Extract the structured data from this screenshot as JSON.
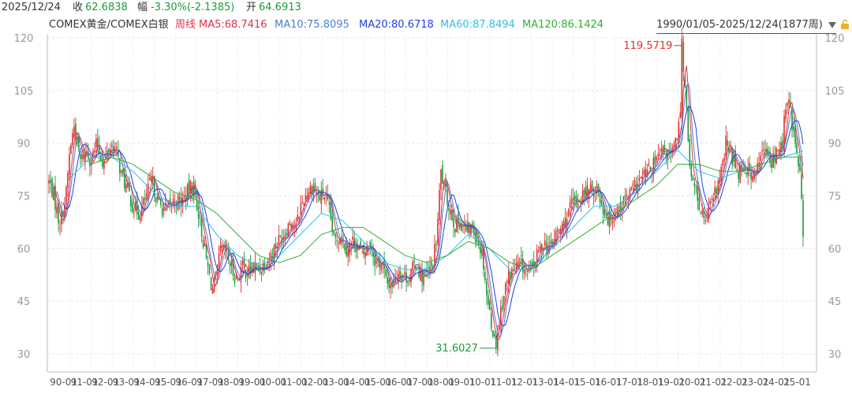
{
  "header": {
    "date": "2025/12/24",
    "close_label": "收",
    "close_value": "62.6838",
    "change_label": "幅",
    "change_value": "-3.30%(-2.1385)",
    "open_label": "开",
    "open_value": "64.6913"
  },
  "legend": {
    "symbol": "COMEX黄金/COMEX白银",
    "period": "周线",
    "ma5": "MA5:68.7416",
    "ma10": "MA10:75.8095",
    "ma20": "MA20:80.6718",
    "ma60": "MA60:87.8494",
    "ma120": "MA120:86.1424",
    "range": "1990/01/05-2025/12/24(1877周)",
    "dropdown_icon": "triangle-down-icon",
    "lock_icon": "lock-icon"
  },
  "colors": {
    "up": "#e03030",
    "down": "#1a9a3a",
    "ma5": "#e0304a",
    "ma10": "#4a7fd0",
    "ma20": "#2040e0",
    "ma60": "#30c0e0",
    "ma120": "#30b030"
  },
  "annotations": {
    "high_label": "119.5719",
    "low_label": "31.6027"
  },
  "chart_data": {
    "type": "candlestick",
    "title": "COMEX黄金/COMEX白银",
    "y_ticks": [
      "120",
      "105",
      "90",
      "75",
      "60",
      "45",
      "30"
    ],
    "ylim": [
      26,
      124
    ],
    "x_ticks": [
      "90-01",
      "91-01",
      "92-01",
      "93-01",
      "94-01",
      "95-01",
      "96-01",
      "97-01",
      "98-01",
      "99-01",
      "00-01",
      "01-01",
      "02-01",
      "03-01",
      "04-01",
      "05-01",
      "06-01",
      "07-01",
      "08-01",
      "09-01",
      "10-01",
      "11-01",
      "12-01",
      "13-01",
      "14-01",
      "15-01",
      "16-01",
      "17-01",
      "18-01",
      "19-01",
      "20-01",
      "21-01",
      "22-01",
      "23-01",
      "24-01",
      "25-01"
    ],
    "x_start_year": 1990,
    "x_end_year": 2025.98,
    "grid": true,
    "price_path": [
      [
        1990.0,
        79
      ],
      [
        1990.2,
        76
      ],
      [
        1990.5,
        67
      ],
      [
        1990.8,
        74
      ],
      [
        1991.0,
        88
      ],
      [
        1991.2,
        95
      ],
      [
        1991.5,
        85
      ],
      [
        1991.8,
        88
      ],
      [
        1992.0,
        85
      ],
      [
        1992.3,
        90
      ],
      [
        1992.6,
        84
      ],
      [
        1992.9,
        89
      ],
      [
        1993.2,
        88
      ],
      [
        1993.5,
        80
      ],
      [
        1993.8,
        76
      ],
      [
        1994.0,
        72
      ],
      [
        1994.3,
        70
      ],
      [
        1994.6,
        74
      ],
      [
        1994.9,
        80
      ],
      [
        1995.2,
        73
      ],
      [
        1995.5,
        71
      ],
      [
        1995.8,
        72
      ],
      [
        1996.0,
        74
      ],
      [
        1996.3,
        73
      ],
      [
        1996.6,
        76
      ],
      [
        1996.9,
        78
      ],
      [
        1997.2,
        68
      ],
      [
        1997.5,
        57
      ],
      [
        1997.8,
        48
      ],
      [
        1998.0,
        52
      ],
      [
        1998.2,
        60
      ],
      [
        1998.5,
        58
      ],
      [
        1998.8,
        53
      ],
      [
        1999.0,
        51
      ],
      [
        1999.2,
        55
      ],
      [
        1999.5,
        53
      ],
      [
        1999.8,
        55
      ],
      [
        2000.0,
        54
      ],
      [
        2000.3,
        56
      ],
      [
        2000.6,
        58
      ],
      [
        2000.9,
        62
      ],
      [
        2001.2,
        64
      ],
      [
        2001.5,
        68
      ],
      [
        2001.8,
        66
      ],
      [
        2002.0,
        72
      ],
      [
        2002.3,
        76
      ],
      [
        2002.6,
        78
      ],
      [
        2002.9,
        74
      ],
      [
        2003.1,
        76
      ],
      [
        2003.4,
        70
      ],
      [
        2003.6,
        62
      ],
      [
        2003.9,
        64
      ],
      [
        2004.2,
        60
      ],
      [
        2004.5,
        62
      ],
      [
        2004.8,
        60
      ],
      [
        2005.0,
        58
      ],
      [
        2005.3,
        62
      ],
      [
        2005.6,
        56
      ],
      [
        2005.9,
        56
      ],
      [
        2006.1,
        50
      ],
      [
        2006.4,
        50
      ],
      [
        2006.7,
        54
      ],
      [
        2006.9,
        52
      ],
      [
        2007.2,
        52
      ],
      [
        2007.5,
        56
      ],
      [
        2007.8,
        52
      ],
      [
        2008.0,
        52
      ],
      [
        2008.3,
        55
      ],
      [
        2008.5,
        63
      ],
      [
        2008.7,
        82
      ],
      [
        2008.9,
        76
      ],
      [
        2009.1,
        72
      ],
      [
        2009.4,
        66
      ],
      [
        2009.6,
        68
      ],
      [
        2009.9,
        65
      ],
      [
        2010.2,
        66
      ],
      [
        2010.5,
        62
      ],
      [
        2010.7,
        58
      ],
      [
        2010.9,
        46
      ],
      [
        2011.2,
        36
      ],
      [
        2011.3,
        32
      ],
      [
        2011.6,
        44
      ],
      [
        2011.9,
        52
      ],
      [
        2012.2,
        54
      ],
      [
        2012.5,
        56
      ],
      [
        2012.8,
        53
      ],
      [
        2013.0,
        54
      ],
      [
        2013.3,
        58
      ],
      [
        2013.6,
        62
      ],
      [
        2013.9,
        60
      ],
      [
        2014.2,
        64
      ],
      [
        2014.5,
        66
      ],
      [
        2014.8,
        70
      ],
      [
        2015.0,
        73
      ],
      [
        2015.3,
        74
      ],
      [
        2015.6,
        76
      ],
      [
        2015.9,
        76
      ],
      [
        2016.1,
        78
      ],
      [
        2016.4,
        72
      ],
      [
        2016.7,
        68
      ],
      [
        2016.9,
        70
      ],
      [
        2017.2,
        72
      ],
      [
        2017.5,
        74
      ],
      [
        2017.8,
        76
      ],
      [
        2018.0,
        78
      ],
      [
        2018.3,
        80
      ],
      [
        2018.6,
        82
      ],
      [
        2018.9,
        84
      ],
      [
        2019.1,
        86
      ],
      [
        2019.4,
        88
      ],
      [
        2019.7,
        86
      ],
      [
        2019.9,
        90
      ],
      [
        2020.1,
        96
      ],
      [
        2020.2,
        119.6
      ],
      [
        2020.3,
        108
      ],
      [
        2020.4,
        104
      ],
      [
        2020.6,
        80
      ],
      [
        2020.9,
        76
      ],
      [
        2021.1,
        70
      ],
      [
        2021.3,
        68
      ],
      [
        2021.6,
        72
      ],
      [
        2021.9,
        78
      ],
      [
        2022.1,
        82
      ],
      [
        2022.3,
        90
      ],
      [
        2022.6,
        86
      ],
      [
        2022.9,
        82
      ],
      [
        2023.1,
        84
      ],
      [
        2023.4,
        82
      ],
      [
        2023.7,
        80
      ],
      [
        2023.9,
        86
      ],
      [
        2024.2,
        88
      ],
      [
        2024.4,
        84
      ],
      [
        2024.6,
        86
      ],
      [
        2024.8,
        88
      ],
      [
        2025.0,
        90
      ],
      [
        2025.1,
        98
      ],
      [
        2025.3,
        102
      ],
      [
        2025.5,
        94
      ],
      [
        2025.7,
        86
      ],
      [
        2025.85,
        80
      ],
      [
        2025.95,
        70
      ],
      [
        2025.98,
        62.7
      ]
    ],
    "ma60_path": [
      [
        1991.0,
        80
      ],
      [
        1992.0,
        86
      ],
      [
        1993.0,
        86
      ],
      [
        1994.0,
        82
      ],
      [
        1995.0,
        76
      ],
      [
        1996.0,
        72
      ],
      [
        1997.0,
        72
      ],
      [
        1998.0,
        64
      ],
      [
        1999.0,
        58
      ],
      [
        2000.0,
        55
      ],
      [
        2001.0,
        58
      ],
      [
        2002.0,
        64
      ],
      [
        2003.0,
        70
      ],
      [
        2004.0,
        68
      ],
      [
        2005.0,
        62
      ],
      [
        2006.0,
        56
      ],
      [
        2007.0,
        54
      ],
      [
        2008.0,
        54
      ],
      [
        2009.0,
        58
      ],
      [
        2010.0,
        64
      ],
      [
        2011.0,
        60
      ],
      [
        2012.0,
        54
      ],
      [
        2013.0,
        54
      ],
      [
        2014.0,
        60
      ],
      [
        2015.0,
        66
      ],
      [
        2016.0,
        72
      ],
      [
        2017.0,
        72
      ],
      [
        2018.0,
        76
      ],
      [
        2019.0,
        82
      ],
      [
        2020.0,
        88
      ],
      [
        2021.0,
        82
      ],
      [
        2022.0,
        80
      ],
      [
        2023.0,
        82
      ],
      [
        2024.0,
        84
      ],
      [
        2025.0,
        86
      ],
      [
        2025.98,
        87.8
      ]
    ],
    "ma120_path": [
      [
        1992.0,
        84
      ],
      [
        1993.0,
        86
      ],
      [
        1994.0,
        84
      ],
      [
        1995.0,
        80
      ],
      [
        1996.0,
        76
      ],
      [
        1997.0,
        74
      ],
      [
        1998.0,
        70
      ],
      [
        1999.0,
        64
      ],
      [
        2000.0,
        58
      ],
      [
        2001.0,
        56
      ],
      [
        2002.0,
        58
      ],
      [
        2003.0,
        64
      ],
      [
        2004.0,
        66
      ],
      [
        2005.0,
        66
      ],
      [
        2006.0,
        62
      ],
      [
        2007.0,
        58
      ],
      [
        2008.0,
        56
      ],
      [
        2009.0,
        58
      ],
      [
        2010.0,
        62
      ],
      [
        2011.0,
        60
      ],
      [
        2012.0,
        56
      ],
      [
        2013.0,
        54
      ],
      [
        2014.0,
        58
      ],
      [
        2015.0,
        62
      ],
      [
        2016.0,
        66
      ],
      [
        2017.0,
        70
      ],
      [
        2018.0,
        74
      ],
      [
        2019.0,
        78
      ],
      [
        2020.0,
        84
      ],
      [
        2021.0,
        84
      ],
      [
        2022.0,
        82
      ],
      [
        2023.0,
        82
      ],
      [
        2024.0,
        84
      ],
      [
        2025.0,
        86
      ],
      [
        2025.98,
        86.1
      ]
    ]
  }
}
